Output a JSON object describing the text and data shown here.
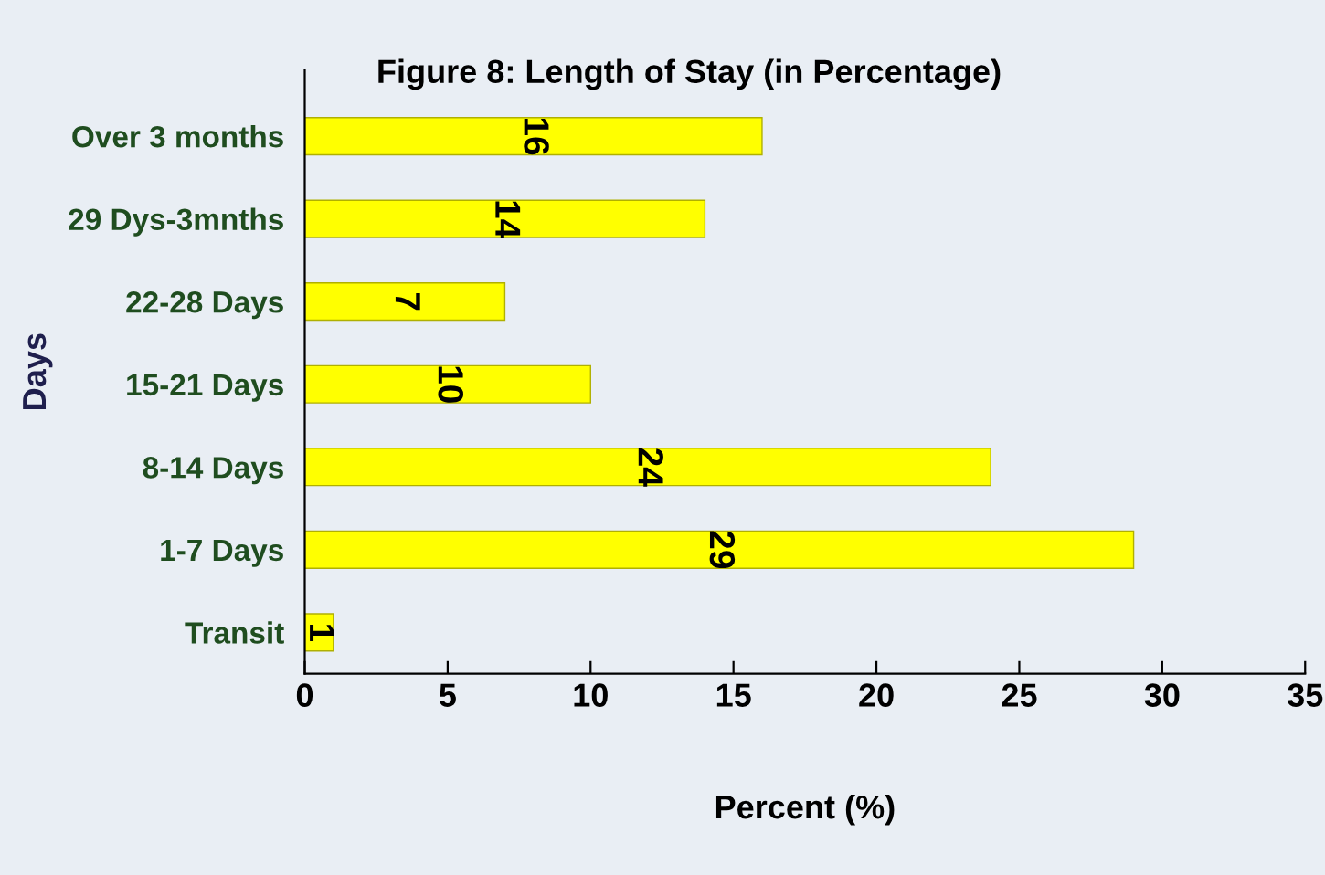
{
  "chart_data": {
    "type": "bar",
    "orientation": "horizontal",
    "title": "Figure 8: Length of Stay (in Percentage)",
    "xlabel": "Percent (%)",
    "ylabel": "Days",
    "categories": [
      "Over 3 months",
      "29 Dys-3mnths",
      "22-28 Days",
      "15-21 Days",
      "8-14 Days",
      "1-7 Days",
      "Transit"
    ],
    "values": [
      16,
      14,
      7,
      10,
      24,
      29,
      1
    ],
    "color": "#ffff00",
    "xlim": [
      0,
      35
    ],
    "xticks": [
      0,
      5,
      10,
      15,
      20,
      25,
      30,
      35
    ],
    "data_labels": true,
    "grid": false,
    "legend": false
  }
}
